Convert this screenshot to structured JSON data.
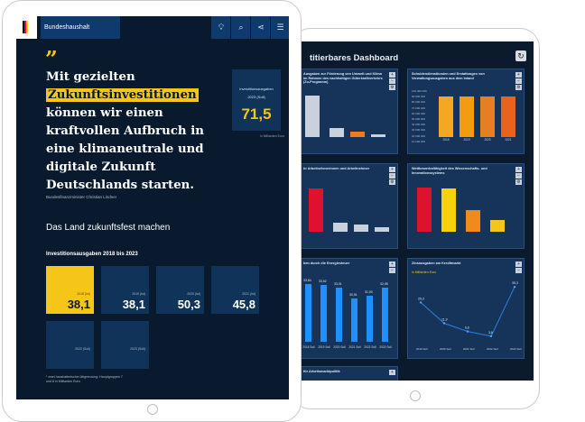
{
  "dashboard": {
    "title": "titierbares Dashboard",
    "reload_icon": "reload-icon",
    "panels": [
      {
        "title": "Ausgaben zur Förderung von Umwelt und Klima im Rahmen des nachhaltigen Güterkraftverkehrs (Zu-Programm)"
      },
      {
        "title": "Schuldendienstkosten und Erstattungen von Verwaltungsausgaben aus dem Inland",
        "yticks": [
          "100 000 000",
          "90 000 000",
          "80 000 000",
          "70 000 000",
          "60 000 000",
          "50 000 000",
          "40 000 000",
          "30 000 000",
          "20 000 000",
          "10 000 000"
        ],
        "bars": [
          {
            "label": "2018",
            "value": 0.77,
            "color": "#f5a623"
          },
          {
            "label": "2019",
            "value": 0.77,
            "color": "#f39c12"
          },
          {
            "label": "2020",
            "value": 0.77,
            "color": "#e67e22"
          },
          {
            "label": "2021",
            "value": 0.77,
            "color": "#e8641c"
          }
        ]
      },
      {
        "title": "ür Arbeitnehmerinnen und Arbeitnehmer"
      },
      {
        "title": "Wettbewerbsfähigkeit des Wissenschafts- und Innovationssystems",
        "bars": [
          {
            "label": "",
            "value": 0.85,
            "color": "#e0102f"
          },
          {
            "label": "",
            "value": 0.82,
            "color": "#f5d20a"
          },
          {
            "label": "",
            "value": 0.42,
            "color": "#f08a1d"
          },
          {
            "label": "",
            "value": 0.22,
            "color": "#f5c518"
          }
        ]
      },
      {
        "title": "ben durch die Energiesteuer",
        "values": [
          "33,84",
          "33,62",
          "33,01",
          "30,51",
          "31,00",
          "32,98"
        ],
        "labels": [
          "2018 Soll",
          "2019 Soll",
          "2020 Soll",
          "2021 Soll",
          "2022 Soll",
          "2023 Soll"
        ]
      },
      {
        "title": "Zinsausgaben am Kreditmarkt",
        "subtitle": "in Milliarden Euro",
        "values": [
          "25,3",
          "11,9",
          "6,6",
          "3,6",
          "35,3"
        ],
        "labels": [
          "2019 Soll",
          "2020 Soll",
          "2021 Soll",
          "2022 Soll",
          "2023 Soll"
        ]
      },
      {
        "title": "für Arbeitsmarktpolitik"
      }
    ]
  },
  "front": {
    "brand": "Bundeshaushalt",
    "icons": [
      "lightbulb-icon",
      "search-icon",
      "share-icon",
      "menu-icon"
    ],
    "quote_before": "Mit gezielten",
    "quote_highlight": "Zukunftsinvestitionen",
    "quote_after": "können wir einen kraftvollen Aufbruch in eine klimaneutrale und digitale Zukunft Deutschlands starten.",
    "author": "Bundesfinanzminister Christian Lindner",
    "kpi": {
      "line1": "Investitionsausgaben",
      "line2": "2023 (Soll)",
      "value": "71,5",
      "note": "in Milliarden Euro"
    },
    "section_title": "Das Land zukunftsfest machen",
    "investment_title": "Investitionsausgaben 2018 bis 2023",
    "tiles": [
      {
        "label": "2018 (Ist)",
        "value": "38,1"
      },
      {
        "label": "2019 (Ist)",
        "value": "38,1"
      },
      {
        "label": "2020 (Ist)",
        "value": "50,3"
      },
      {
        "label": "2021 (Ist)",
        "value": "45,8"
      },
      {
        "label": "2022 (Soll)",
        "value": ""
      },
      {
        "label": "2023 (Soll)",
        "value": ""
      }
    ],
    "footnote": "* zwei haushalterischer Abgrenzung: Hauptgruppen 7 und 8 in Milliarden Euro"
  }
}
